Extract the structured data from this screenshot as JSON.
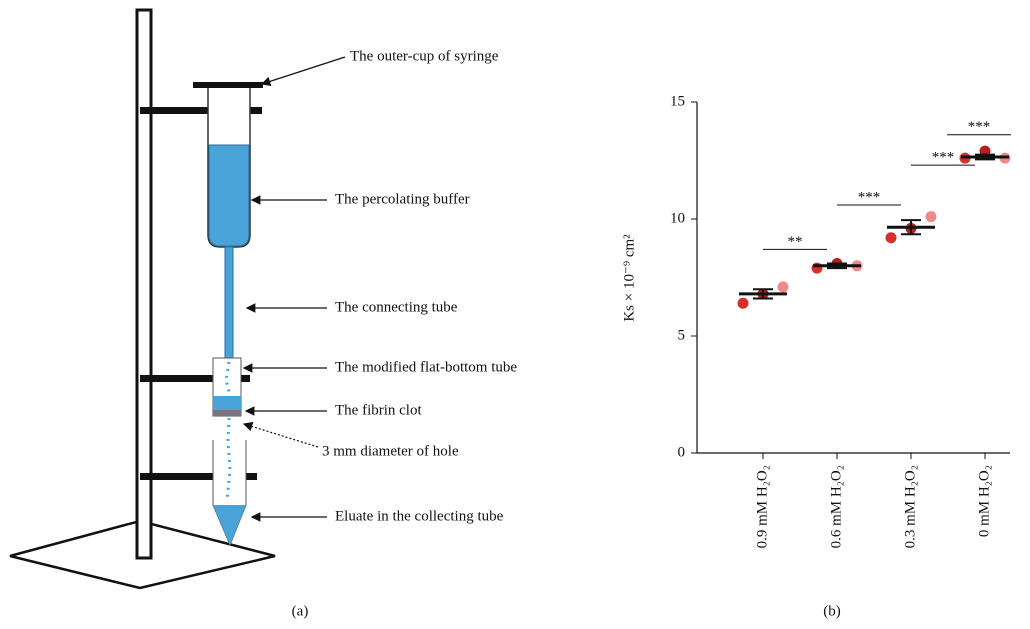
{
  "diagram": {
    "labels": [
      "The outer-cup of syringe",
      "The percolating buffer",
      "The connecting tube",
      "The modified flat-bottom tube",
      "The fibrin clot",
      "3 mm diameter of hole",
      "Eluate in the collecting tube"
    ],
    "caption": "(a)"
  },
  "chart_data": {
    "type": "dotplot",
    "caption": "(b)",
    "ylabel": "Ks × 10⁻⁹ cm²",
    "categories": [
      "0.9 mM H₂O₂",
      "0.6 mM H₂O₂",
      "0.3 mM H₂O₂",
      "0 mM H₂O₂"
    ],
    "values": [
      6.8,
      8.0,
      9.65,
      12.65
    ],
    "errors": [
      0.2,
      0.1,
      0.3,
      0.1
    ],
    "points": [
      [
        6.4,
        6.8,
        7.1
      ],
      [
        7.9,
        8.1,
        8.0
      ],
      [
        9.2,
        9.6,
        10.1
      ],
      [
        12.6,
        12.9,
        12.6
      ]
    ],
    "point_colors": [
      "#d6302a",
      "#b3201f",
      "#f08a8a"
    ],
    "significance": [
      {
        "text": "**",
        "y": 8.7
      },
      {
        "text": "***",
        "y": 10.6
      },
      {
        "text": "***",
        "y": 12.3
      },
      {
        "text": "***",
        "y": 13.6
      }
    ],
    "ylim": [
      0,
      15
    ],
    "yticks": [
      0,
      5,
      10,
      15
    ]
  }
}
